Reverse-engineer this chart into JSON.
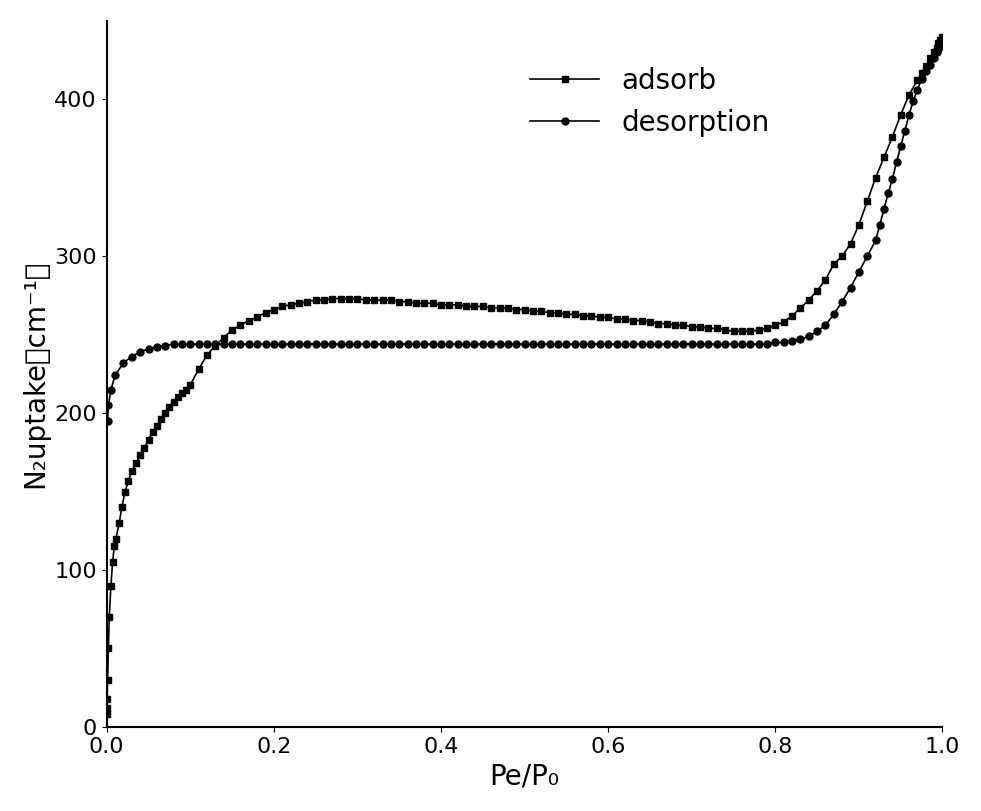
{
  "title": "",
  "xlabel": "Pe/P₀",
  "ylabel": "N₂uptake（cm⁻¹）",
  "xlim": [
    0.0,
    1.0
  ],
  "ylim": [
    0,
    450
  ],
  "yticks": [
    0,
    100,
    200,
    300,
    400
  ],
  "xticks": [
    0.0,
    0.2,
    0.4,
    0.6,
    0.8,
    1.0
  ],
  "adsorb_x": [
    0.0001,
    0.0003,
    0.0005,
    0.001,
    0.002,
    0.003,
    0.005,
    0.007,
    0.009,
    0.011,
    0.015,
    0.018,
    0.022,
    0.026,
    0.03,
    0.035,
    0.04,
    0.045,
    0.05,
    0.055,
    0.06,
    0.065,
    0.07,
    0.075,
    0.08,
    0.085,
    0.09,
    0.095,
    0.1,
    0.11,
    0.12,
    0.13,
    0.14,
    0.15,
    0.16,
    0.17,
    0.18,
    0.19,
    0.2,
    0.21,
    0.22,
    0.23,
    0.24,
    0.25,
    0.26,
    0.27,
    0.28,
    0.29,
    0.3,
    0.31,
    0.32,
    0.33,
    0.34,
    0.35,
    0.36,
    0.37,
    0.38,
    0.39,
    0.4,
    0.41,
    0.42,
    0.43,
    0.44,
    0.45,
    0.46,
    0.47,
    0.48,
    0.49,
    0.5,
    0.51,
    0.52,
    0.53,
    0.54,
    0.55,
    0.56,
    0.57,
    0.58,
    0.59,
    0.6,
    0.61,
    0.62,
    0.63,
    0.64,
    0.65,
    0.66,
    0.67,
    0.68,
    0.69,
    0.7,
    0.71,
    0.72,
    0.73,
    0.74,
    0.75,
    0.76,
    0.77,
    0.78,
    0.79,
    0.8,
    0.81,
    0.82,
    0.83,
    0.84,
    0.85,
    0.86,
    0.87,
    0.88,
    0.89,
    0.9,
    0.91,
    0.92,
    0.93,
    0.94,
    0.95,
    0.96,
    0.97,
    0.975,
    0.98,
    0.985,
    0.99,
    0.993,
    0.995,
    0.997,
    0.999
  ],
  "adsorb_y": [
    8,
    12,
    18,
    30,
    50,
    70,
    90,
    105,
    115,
    120,
    130,
    140,
    150,
    157,
    163,
    168,
    173,
    178,
    183,
    188,
    192,
    196,
    200,
    204,
    207,
    210,
    213,
    215,
    218,
    228,
    237,
    243,
    248,
    253,
    256,
    259,
    261,
    264,
    266,
    268,
    269,
    270,
    271,
    272,
    272,
    273,
    273,
    273,
    273,
    272,
    272,
    272,
    272,
    271,
    271,
    270,
    270,
    270,
    269,
    269,
    269,
    268,
    268,
    268,
    267,
    267,
    267,
    266,
    266,
    265,
    265,
    264,
    264,
    263,
    263,
    262,
    262,
    261,
    261,
    260,
    260,
    259,
    259,
    258,
    257,
    257,
    256,
    256,
    255,
    255,
    254,
    254,
    253,
    252,
    252,
    252,
    253,
    254,
    256,
    258,
    262,
    267,
    272,
    278,
    285,
    295,
    300,
    308,
    320,
    335,
    350,
    363,
    376,
    390,
    403,
    412,
    417,
    421,
    426,
    430,
    433,
    436,
    438,
    440
  ],
  "desorb_x": [
    0.999,
    0.997,
    0.995,
    0.993,
    0.99,
    0.985,
    0.98,
    0.975,
    0.97,
    0.965,
    0.96,
    0.955,
    0.95,
    0.945,
    0.94,
    0.935,
    0.93,
    0.925,
    0.92,
    0.91,
    0.9,
    0.89,
    0.88,
    0.87,
    0.86,
    0.85,
    0.84,
    0.83,
    0.82,
    0.81,
    0.8,
    0.79,
    0.78,
    0.77,
    0.76,
    0.75,
    0.74,
    0.73,
    0.72,
    0.71,
    0.7,
    0.69,
    0.68,
    0.67,
    0.66,
    0.65,
    0.64,
    0.63,
    0.62,
    0.61,
    0.6,
    0.59,
    0.58,
    0.57,
    0.56,
    0.55,
    0.54,
    0.53,
    0.52,
    0.51,
    0.5,
    0.49,
    0.48,
    0.47,
    0.46,
    0.45,
    0.44,
    0.43,
    0.42,
    0.41,
    0.4,
    0.39,
    0.38,
    0.37,
    0.36,
    0.35,
    0.34,
    0.33,
    0.32,
    0.31,
    0.3,
    0.29,
    0.28,
    0.27,
    0.26,
    0.25,
    0.24,
    0.23,
    0.22,
    0.21,
    0.2,
    0.19,
    0.18,
    0.17,
    0.16,
    0.15,
    0.14,
    0.13,
    0.12,
    0.11,
    0.1,
    0.09,
    0.08,
    0.07,
    0.06,
    0.05,
    0.04,
    0.03,
    0.02,
    0.01,
    0.005,
    0.002,
    0.001
  ],
  "desorb_y": [
    435,
    434,
    432,
    430,
    426,
    422,
    418,
    413,
    406,
    399,
    390,
    380,
    370,
    360,
    349,
    340,
    330,
    320,
    310,
    300,
    290,
    280,
    271,
    263,
    256,
    252,
    249,
    247,
    246,
    245,
    245,
    244,
    244,
    244,
    244,
    244,
    244,
    244,
    244,
    244,
    244,
    244,
    244,
    244,
    244,
    244,
    244,
    244,
    244,
    244,
    244,
    244,
    244,
    244,
    244,
    244,
    244,
    244,
    244,
    244,
    244,
    244,
    244,
    244,
    244,
    244,
    244,
    244,
    244,
    244,
    244,
    244,
    244,
    244,
    244,
    244,
    244,
    244,
    244,
    244,
    244,
    244,
    244,
    244,
    244,
    244,
    244,
    244,
    244,
    244,
    244,
    244,
    244,
    244,
    244,
    244,
    244,
    244,
    244,
    244,
    244,
    244,
    244,
    243,
    242,
    241,
    239,
    236,
    232,
    224,
    215,
    205,
    195
  ],
  "line_color": "#000000",
  "marker_adsorb": "s",
  "marker_desorb": "o",
  "marker_size": 5,
  "line_width": 1.2,
  "legend_fontsize": 20,
  "axis_fontsize": 20,
  "tick_fontsize": 16
}
